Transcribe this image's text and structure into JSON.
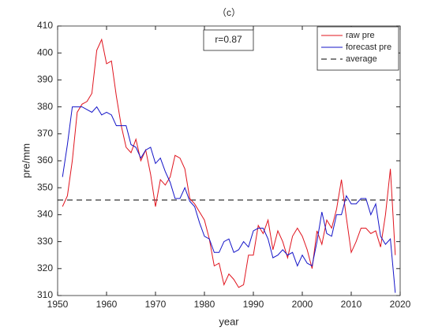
{
  "chart_data": {
    "type": "line",
    "title": "（c）",
    "xlabel": "year",
    "ylabel": "pre/mm",
    "annotation": "r=0.87",
    "x": [
      1951,
      1952,
      1953,
      1954,
      1955,
      1956,
      1957,
      1958,
      1959,
      1960,
      1961,
      1962,
      1963,
      1964,
      1965,
      1966,
      1967,
      1968,
      1969,
      1970,
      1971,
      1972,
      1973,
      1974,
      1975,
      1976,
      1977,
      1978,
      1979,
      1980,
      1981,
      1982,
      1983,
      1984,
      1985,
      1986,
      1987,
      1988,
      1989,
      1990,
      1991,
      1992,
      1993,
      1994,
      1995,
      1996,
      1997,
      1998,
      1999,
      2000,
      2001,
      2002,
      2003,
      2004,
      2005,
      2006,
      2007,
      2008,
      2009,
      2010,
      2011,
      2012,
      2013,
      2014,
      2015,
      2016,
      2017,
      2018,
      2019
    ],
    "series": [
      {
        "name": "raw pre",
        "color": "#e0141e",
        "values": [
          343,
          347,
          360,
          378,
          381,
          382,
          385,
          401,
          405,
          396,
          397,
          384,
          373,
          365,
          363,
          368,
          360,
          364,
          355,
          343,
          353,
          351,
          354,
          362,
          361,
          357,
          346,
          344,
          341,
          338,
          331,
          321,
          322,
          314,
          318,
          316,
          313,
          314,
          325,
          325,
          336,
          333,
          338,
          327,
          334,
          330,
          324,
          332,
          335,
          332,
          327,
          320,
          334,
          329,
          338,
          335,
          342,
          353,
          339,
          326,
          330,
          335,
          335,
          333,
          334,
          328,
          340,
          357,
          325
        ]
      },
      {
        "name": "forecast pre",
        "color": "#1414c8",
        "values": [
          354,
          366,
          380,
          380,
          380,
          379,
          378,
          380,
          377,
          378,
          377,
          373,
          373,
          373,
          366,
          365,
          361,
          364,
          365,
          359,
          361,
          356,
          352,
          346,
          346,
          350,
          345,
          343,
          337,
          332,
          331,
          326,
          326,
          330,
          331,
          326,
          327,
          330,
          328,
          334,
          335,
          335,
          331,
          324,
          325,
          327,
          325,
          326,
          321,
          325,
          322,
          321,
          330,
          341,
          333,
          332,
          340,
          340,
          347,
          344,
          344,
          346,
          346,
          340,
          344,
          332,
          329,
          331,
          311
        ]
      }
    ],
    "hlines": [
      {
        "name": "average",
        "color": "#000000",
        "value": 345.4,
        "dashed": true
      }
    ],
    "xlim": [
      1950,
      2020
    ],
    "xticks": [
      1950,
      1960,
      1970,
      1980,
      1990,
      2000,
      2010,
      2020
    ],
    "ylim": [
      310,
      410
    ],
    "yticks": [
      310,
      320,
      330,
      340,
      350,
      360,
      370,
      380,
      390,
      400,
      410
    ],
    "legend": "upper right",
    "grid": false
  }
}
